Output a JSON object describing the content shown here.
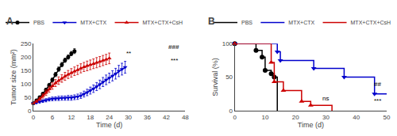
{
  "chart_data": [
    {
      "type": "line",
      "title": "A",
      "x_label": "Time (d)",
      "y_label": "Tumor size (mm²)",
      "xlim": [
        0,
        48
      ],
      "ylim": [
        0,
        250
      ],
      "xticks": [
        0,
        6,
        12,
        18,
        24,
        30,
        36,
        42,
        48
      ],
      "yticks": [
        0,
        50,
        100,
        150,
        200,
        250
      ],
      "grid": false,
      "legend": "top",
      "series": [
        {
          "name": "PBS",
          "color": "#000000",
          "marker": "circle",
          "x": [
            0,
            1,
            2,
            3,
            4,
            5,
            6,
            7,
            8,
            9,
            10,
            11,
            12,
            13
          ],
          "values": [
            28,
            38,
            50,
            63,
            78,
            95,
            115,
            135,
            155,
            172,
            188,
            200,
            213,
            222
          ],
          "yerr": [
            2,
            3,
            4,
            5,
            6,
            7,
            7,
            8,
            8,
            8,
            8,
            8,
            8,
            9
          ]
        },
        {
          "name": "MTX+CTX",
          "color": "#0000cc",
          "marker": "triangle-down",
          "x": [
            0,
            1,
            2,
            3,
            4,
            5,
            6,
            7,
            8,
            9,
            10,
            11,
            12,
            13,
            14,
            15,
            16,
            17,
            18,
            19,
            20,
            21,
            22,
            23,
            24,
            25,
            26,
            27,
            28,
            29
          ],
          "values": [
            28,
            30,
            33,
            36,
            39,
            42,
            44,
            45,
            46,
            47,
            47,
            48,
            48,
            50,
            52,
            56,
            62,
            68,
            75,
            82,
            90,
            98,
            107,
            115,
            122,
            130,
            138,
            148,
            155,
            162
          ],
          "yerr": [
            2,
            3,
            4,
            5,
            6,
            6,
            7,
            7,
            8,
            8,
            8,
            9,
            9,
            9,
            10,
            10,
            11,
            12,
            13,
            14,
            15,
            16,
            17,
            18,
            18,
            19,
            20,
            21,
            22,
            22
          ]
        },
        {
          "name": "MTX+CTX+CsH",
          "color": "#cc0000",
          "marker": "triangle-up",
          "x": [
            0,
            1,
            2,
            3,
            4,
            5,
            6,
            7,
            8,
            9,
            10,
            11,
            12,
            13,
            14,
            15,
            16,
            17,
            18,
            19,
            20,
            21,
            22,
            23,
            24
          ],
          "values": [
            28,
            35,
            44,
            55,
            67,
            80,
            92,
            103,
            112,
            120,
            128,
            135,
            141,
            147,
            152,
            158,
            163,
            167,
            171,
            175,
            179,
            183,
            187,
            191,
            195
          ],
          "yerr": [
            2,
            4,
            6,
            8,
            10,
            11,
            12,
            13,
            14,
            14,
            15,
            15,
            16,
            16,
            17,
            17,
            17,
            18,
            18,
            18,
            19,
            19,
            19,
            19,
            20
          ]
        }
      ],
      "annotations": [
        {
          "text": "**",
          "x": 30,
          "y": 196
        },
        {
          "text": "###",
          "x": 44.5,
          "y": 218
        },
        {
          "text": "***",
          "x": 44.5,
          "y": 207
        }
      ]
    },
    {
      "type": "line",
      "title": "B",
      "x_label": "Time (d)",
      "y_label": "Survival (%)",
      "xlim": [
        0,
        50
      ],
      "ylim": [
        0,
        100
      ],
      "xticks": [
        0,
        10,
        20,
        30,
        40,
        50
      ],
      "yticks": [
        0,
        50,
        100
      ],
      "grid": false,
      "legend": "top",
      "series": [
        {
          "name": "PBS",
          "color": "#000000",
          "marker": "circle",
          "x": [
            0,
            7,
            7,
            9,
            9,
            10,
            10,
            12,
            12,
            13,
            13,
            14,
            14
          ],
          "values": [
            100,
            100,
            90,
            90,
            80,
            80,
            60,
            60,
            55,
            55,
            50,
            50,
            0
          ],
          "markers_x": [
            0,
            7,
            9,
            10,
            12,
            13
          ],
          "markers_y": [
            100,
            90,
            80,
            60,
            55,
            50
          ]
        },
        {
          "name": "MTX+CTX",
          "color": "#0000cc",
          "marker": "triangle-down",
          "x": [
            0,
            14,
            14,
            15,
            15,
            26,
            26,
            36,
            36,
            37,
            37,
            46,
            46,
            50
          ],
          "values": [
            100,
            100,
            88,
            88,
            75,
            75,
            63,
            63,
            50,
            50,
            50,
            50,
            25,
            25
          ],
          "markers_x": [
            0,
            14,
            15,
            26,
            36,
            46
          ],
          "markers_y": [
            100,
            88,
            75,
            63,
            50,
            25
          ]
        },
        {
          "name": "MTX+CTX+CsH",
          "color": "#cc0000",
          "marker": "triangle-up",
          "x": [
            0,
            12,
            12,
            13,
            13,
            16,
            16,
            22,
            22,
            25,
            25,
            32,
            32
          ],
          "values": [
            100,
            100,
            72,
            72,
            43,
            43,
            30,
            30,
            14,
            14,
            8,
            8,
            0
          ],
          "markers_x": [
            0,
            12,
            13,
            16,
            22,
            25
          ],
          "markers_y": [
            100,
            72,
            43,
            30,
            14,
            8
          ]
        }
      ],
      "annotations": [
        {
          "text": "ns",
          "x": 30,
          "y": 11
        },
        {
          "text": "##",
          "x": 47,
          "y": 32
        },
        {
          "text": "***",
          "x": 47,
          "y": 22
        }
      ]
    }
  ]
}
